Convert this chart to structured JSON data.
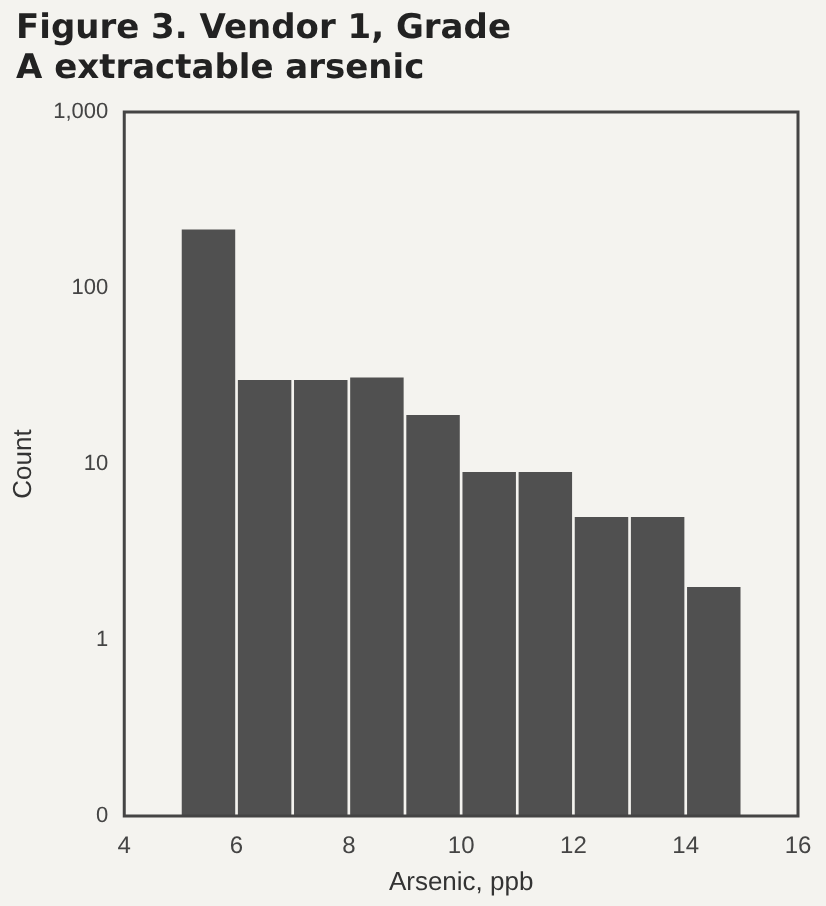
{
  "chart_data": {
    "type": "histogram",
    "title": "Figure 3. Vendor 1, Grade A extractable arsenic",
    "xlabel": "Arsenic, ppb",
    "ylabel": "Count",
    "bins": [
      5,
      6,
      7,
      8,
      9,
      10,
      11,
      12,
      13,
      14,
      15
    ],
    "values": [
      215,
      30,
      30,
      31,
      19,
      9,
      9,
      5,
      5,
      2
    ],
    "color": "#505050",
    "log": "y",
    "xlim": [
      4,
      16
    ],
    "xticks": [
      4,
      6,
      8,
      10,
      12,
      14,
      16
    ],
    "ylim": [
      0.1,
      1000
    ],
    "yticks": [
      {
        "value": 0.1,
        "label": "0"
      },
      1,
      10,
      100,
      {
        "value": 1000,
        "label": "1,000"
      }
    ]
  }
}
